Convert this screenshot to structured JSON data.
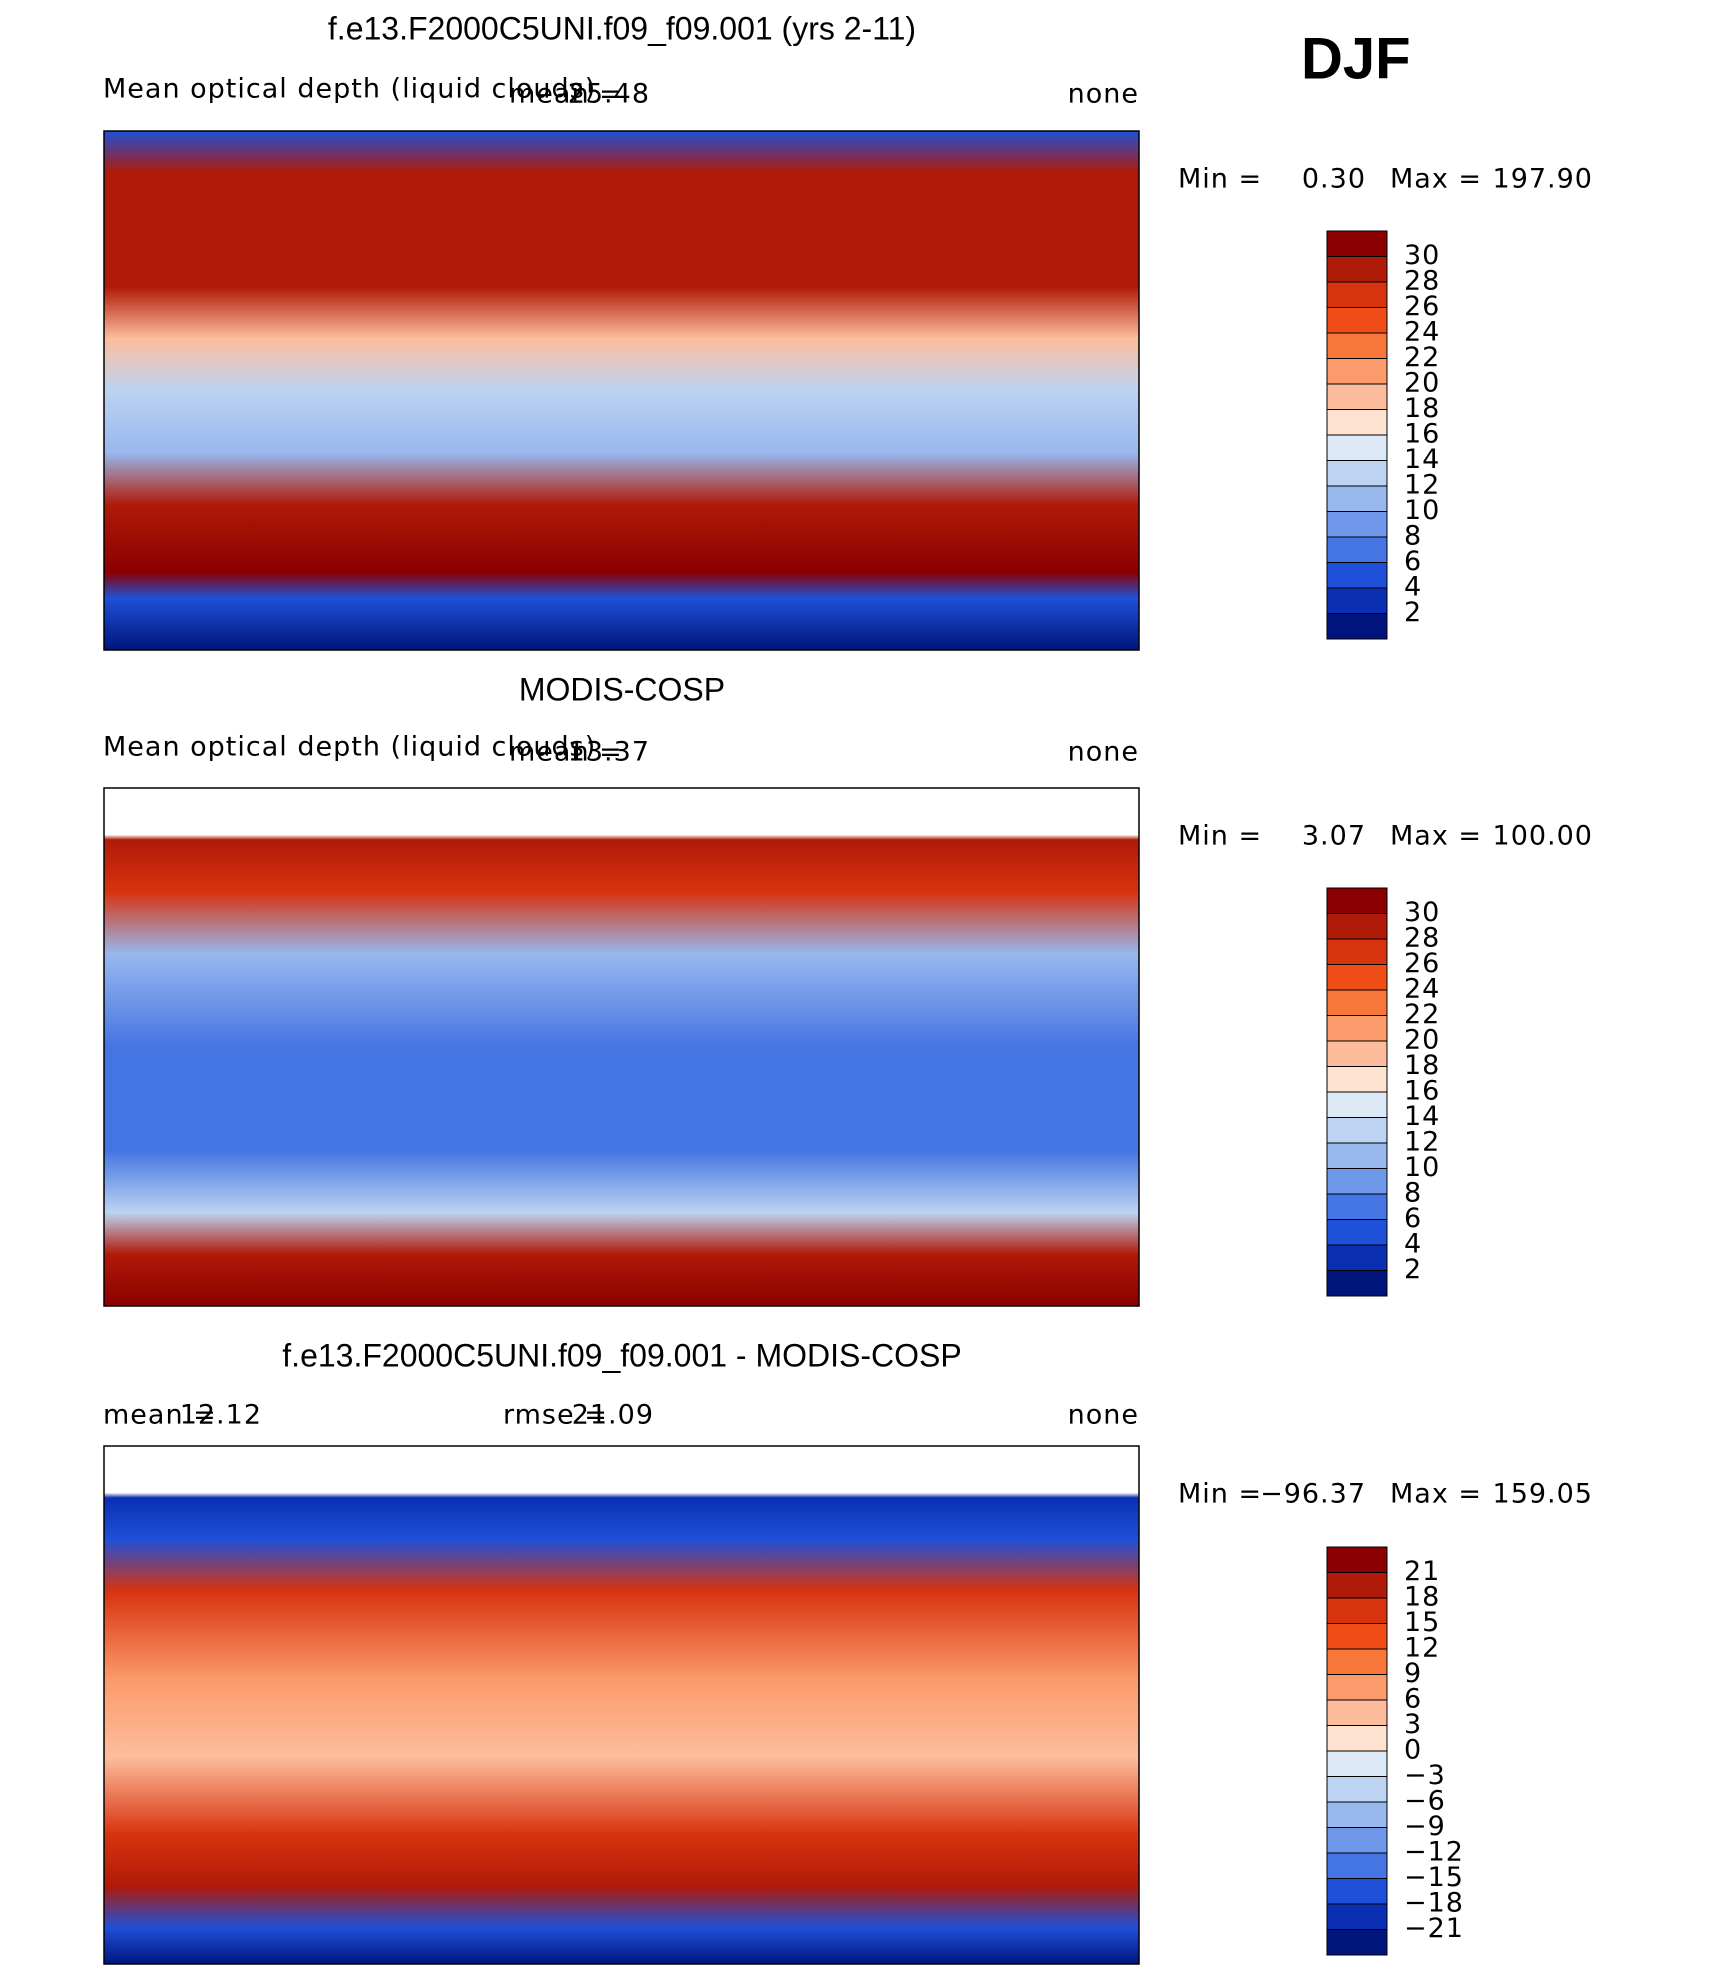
{
  "figure_title": "DJF",
  "colorbar_colors": [
    "#8b0000",
    "#b01a08",
    "#d8330f",
    "#f04d18",
    "#f7763a",
    "#fb9a6a",
    "#fdbd9d",
    "#fee3d0",
    "#dde9f7",
    "#bcd3f2",
    "#98b8ee",
    "#6f98ea",
    "#4575e3",
    "#1f50d8",
    "#0a2fb3",
    "#00157c"
  ],
  "panels": [
    {
      "title": "f.e13.F2000C5UNI.f09_f09.001 (yrs 2-11)",
      "subtitle": "Mean optical depth (liquid clouds)",
      "stats": [
        {
          "label": "mean =",
          "value": "25.48"
        }
      ],
      "units": "none",
      "min_label": "Min =",
      "min": "0.30",
      "max_label": "Max =",
      "max": "197.90",
      "colorbar_labels": [
        "30",
        "28",
        "26",
        "24",
        "22",
        "20",
        "18",
        "16",
        "14",
        "12",
        "10",
        "8",
        "6",
        "4",
        "2"
      ]
    },
    {
      "title": "MODIS-COSP",
      "subtitle": "Mean optical depth (liquid clouds)",
      "stats": [
        {
          "label": "mean =",
          "value": "13.37"
        }
      ],
      "units": "none",
      "min_label": "Min =",
      "min": "3.07",
      "max_label": "Max =",
      "max": "100.00",
      "colorbar_labels": [
        "30",
        "28",
        "26",
        "24",
        "22",
        "20",
        "18",
        "16",
        "14",
        "12",
        "10",
        "8",
        "6",
        "4",
        "2"
      ]
    },
    {
      "title": "f.e13.F2000C5UNI.f09_f09.001 - MODIS-COSP",
      "stats": [
        {
          "label": "mean =",
          "value": "12.12"
        },
        {
          "label": "rmse =",
          "value": "21.09"
        }
      ],
      "units": "none",
      "min_label": "Min =",
      "min": "−96.37",
      "max_label": "Max =",
      "max": "159.05",
      "colorbar_labels": [
        "21",
        "18",
        "15",
        "12",
        "9",
        "6",
        "3",
        "0",
        "−3",
        "−6",
        "−9",
        "−12",
        "−15",
        "−18",
        "−21"
      ]
    }
  ]
}
